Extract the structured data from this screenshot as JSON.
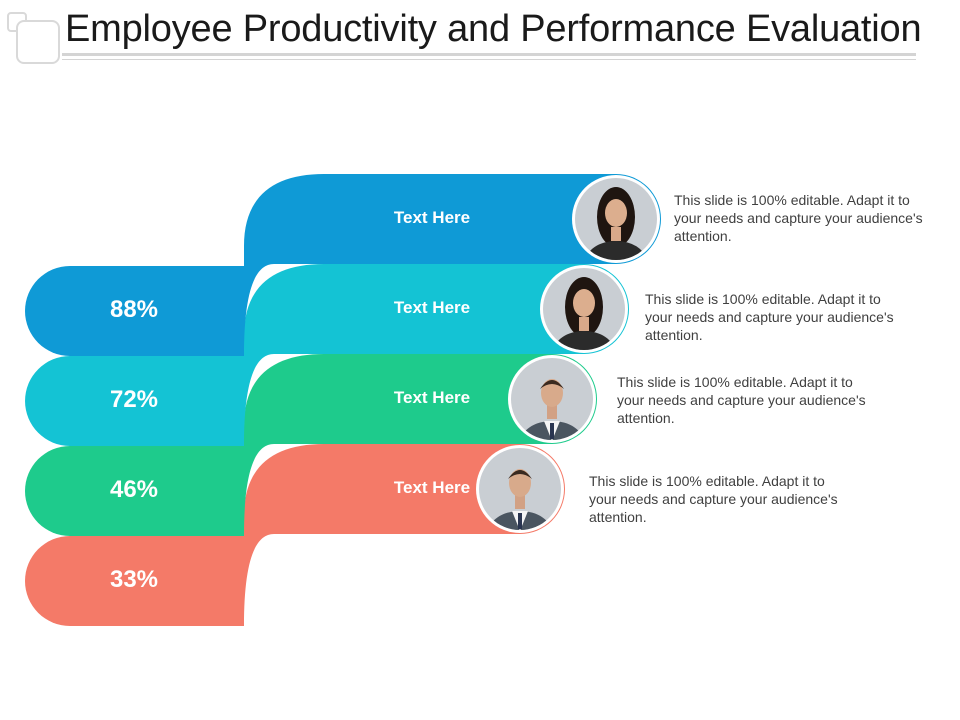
{
  "title": "Employee Productivity and Performance Evaluation",
  "items": [
    {
      "percent": "88%",
      "label": "Text Here",
      "description": "This slide is 100% editable. Adapt it to your needs and capture your audience's attention.",
      "color": "#0f9ad6",
      "avatar": "woman-portrait"
    },
    {
      "percent": "72%",
      "label": "Text Here",
      "description": "This slide is 100% editable. Adapt it to your needs and capture your audience's attention.",
      "color": "#14c3d4",
      "avatar": "woman-portrait"
    },
    {
      "percent": "46%",
      "label": "Text Here",
      "description": "This slide is 100% editable. Adapt it to your needs and capture your audience's attention.",
      "color": "#1ecb8c",
      "avatar": "man-portrait"
    },
    {
      "percent": "33%",
      "label": "Text Here",
      "description": "This slide is 100% editable. Adapt it to your needs and capture your audience's attention.",
      "color": "#f47a68",
      "avatar": "man-portrait"
    }
  ]
}
